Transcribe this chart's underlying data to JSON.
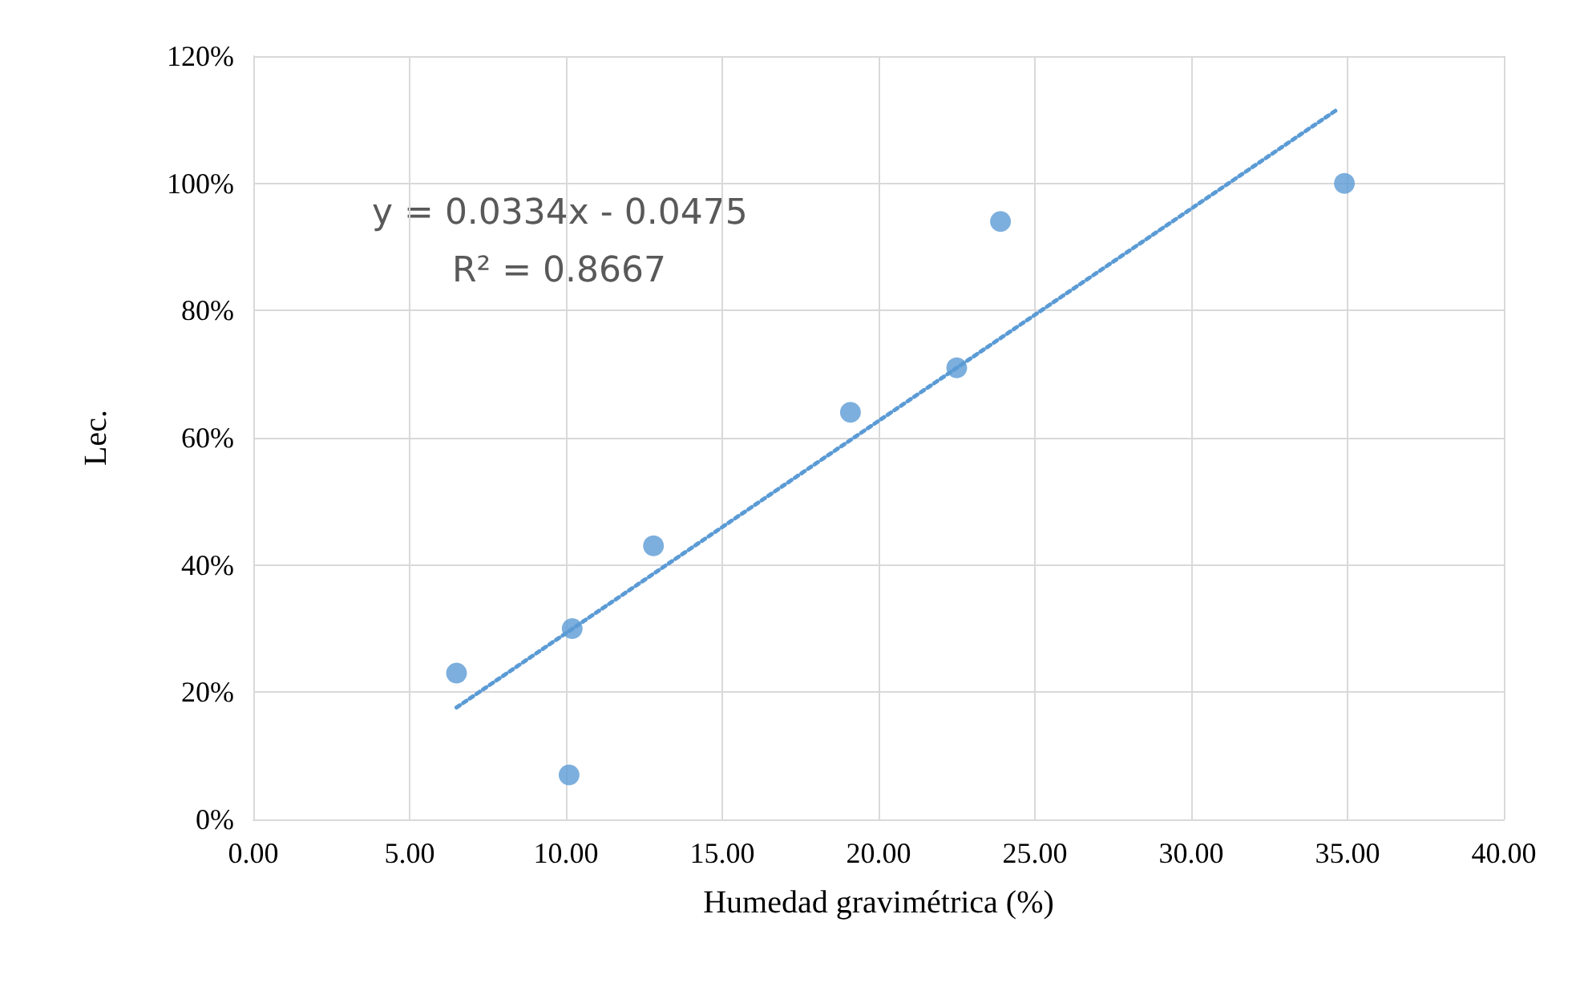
{
  "chart_data": {
    "type": "scatter",
    "xlabel": "Humedad gravimétrica (%)",
    "ylabel": "Lec.",
    "annotations": [
      "y = 0.0334x - 0.0475",
      "R² = 0.8667"
    ],
    "series": [
      {
        "color": "#5b9bd5",
        "marker": "circle",
        "x": [
          6.5,
          10.2,
          10.1,
          12.8,
          19.1,
          22.5,
          23.9,
          34.9
        ],
        "values": [
          23,
          30,
          7,
          43,
          64,
          71,
          94,
          100
        ]
      },
      {
        "type": "line",
        "color": "#5b9bd5",
        "line_style": "dotted",
        "marker": "none",
        "x": [
          6.5,
          34.7
        ],
        "values": [
          17.6,
          111.7
        ]
      }
    ],
    "xlim": [
      0,
      40
    ],
    "xticks": [
      {
        "value": 0,
        "label": "0.00"
      },
      {
        "value": 5,
        "label": "5.00"
      },
      {
        "value": 10,
        "label": "10.00"
      },
      {
        "value": 15,
        "label": "15.00"
      },
      {
        "value": 20,
        "label": "20.00"
      },
      {
        "value": 25,
        "label": "25.00"
      },
      {
        "value": 30,
        "label": "30.00"
      },
      {
        "value": 35,
        "label": "35.00"
      },
      {
        "value": 40,
        "label": "40.00"
      }
    ],
    "ylim": [
      0,
      120
    ],
    "yticks": [
      {
        "value": 0,
        "label": "0%"
      },
      {
        "value": 20,
        "label": "20%"
      },
      {
        "value": 40,
        "label": "40%"
      },
      {
        "value": 60,
        "label": "60%"
      },
      {
        "value": 80,
        "label": "80%"
      },
      {
        "value": 100,
        "label": "100%"
      },
      {
        "value": 120,
        "label": "120%"
      }
    ],
    "grid": true
  }
}
